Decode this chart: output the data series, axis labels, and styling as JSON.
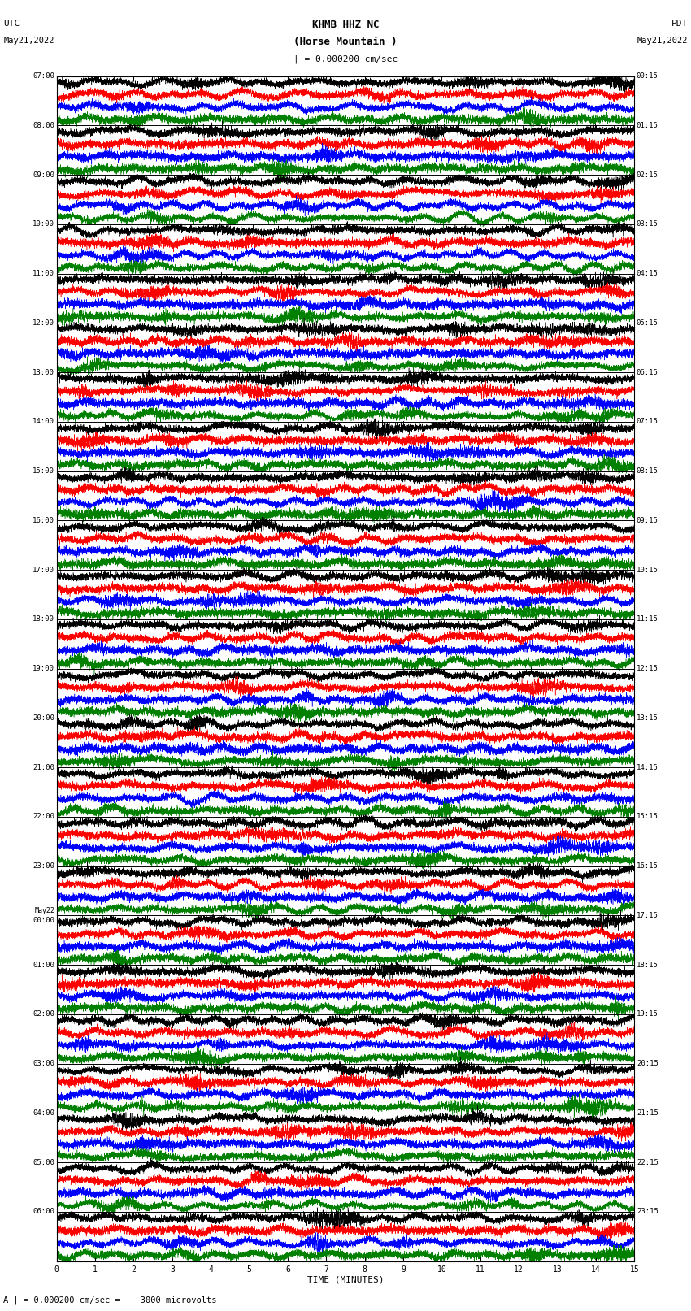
{
  "title_line1": "KHMB HHZ NC",
  "title_line2": "(Horse Mountain )",
  "scale_label": "| = 0.000200 cm/sec",
  "bottom_label": "A | = 0.000200 cm/sec =    3000 microvolts",
  "xlabel": "TIME (MINUTES)",
  "bg_color": "#ffffff",
  "trace_colors": [
    "black",
    "red",
    "blue",
    "green"
  ],
  "left_times": [
    "07:00",
    "08:00",
    "09:00",
    "10:00",
    "11:00",
    "12:00",
    "13:00",
    "14:00",
    "15:00",
    "16:00",
    "17:00",
    "18:00",
    "19:00",
    "20:00",
    "21:00",
    "22:00",
    "23:00",
    "May22\n00:00",
    "01:00",
    "02:00",
    "03:00",
    "04:00",
    "05:00",
    "06:00"
  ],
  "right_times": [
    "00:15",
    "01:15",
    "02:15",
    "03:15",
    "04:15",
    "05:15",
    "06:15",
    "07:15",
    "08:15",
    "09:15",
    "10:15",
    "11:15",
    "12:15",
    "13:15",
    "14:15",
    "15:15",
    "16:15",
    "17:15",
    "18:15",
    "19:15",
    "20:15",
    "21:15",
    "22:15",
    "23:15"
  ],
  "n_rows": 24,
  "traces_per_row": 4,
  "xmin": 0,
  "xmax": 15,
  "seed": 42
}
